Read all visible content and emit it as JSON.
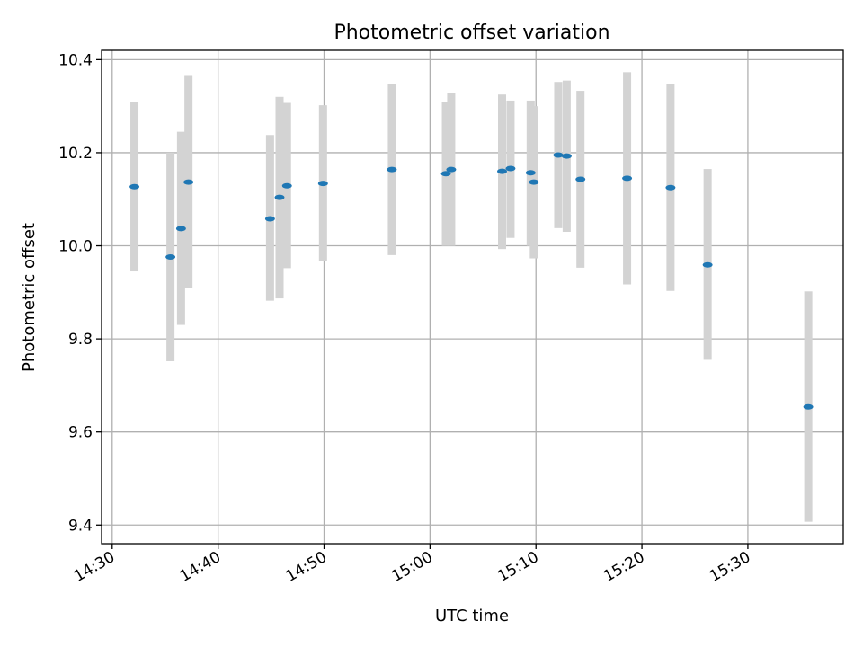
{
  "chart_data": {
    "type": "scatter",
    "title": "Photometric offset variation",
    "xlabel": "UTC time",
    "ylabel": "Photometric offset",
    "x_axis": {
      "kind": "time",
      "range": [
        "14:29",
        "15:39"
      ],
      "ticks": [
        "14:30",
        "14:40",
        "14:50",
        "15:00",
        "15:10",
        "15:20",
        "15:30"
      ]
    },
    "y_axis": {
      "range": [
        9.36,
        10.42
      ],
      "ticks": [
        9.4,
        9.6,
        9.8,
        10.0,
        10.2,
        10.4
      ],
      "tick_labels": [
        "9.4",
        "9.6",
        "9.8",
        "10.0",
        "10.2",
        "10.4"
      ]
    },
    "grid": true,
    "colors": {
      "point": "#1f77b4",
      "errorbar": "#d3d3d3"
    },
    "points": [
      {
        "x": "14:32:06",
        "y": 10.127,
        "low": 9.945,
        "high": 10.308
      },
      {
        "x": "14:35:30",
        "y": 9.976,
        "low": 9.752,
        "high": 10.2
      },
      {
        "x": "14:36:30",
        "y": 10.037,
        "low": 9.83,
        "high": 10.245
      },
      {
        "x": "14:37:12",
        "y": 10.137,
        "low": 9.91,
        "high": 10.365
      },
      {
        "x": "14:44:54",
        "y": 10.058,
        "low": 9.882,
        "high": 10.238
      },
      {
        "x": "14:45:48",
        "y": 10.104,
        "low": 9.887,
        "high": 10.32
      },
      {
        "x": "14:46:30",
        "y": 10.129,
        "low": 9.952,
        "high": 10.307
      },
      {
        "x": "14:49:54",
        "y": 10.134,
        "low": 9.967,
        "high": 10.302
      },
      {
        "x": "14:56:24",
        "y": 10.164,
        "low": 9.98,
        "high": 10.348
      },
      {
        "x": "15:01:30",
        "y": 10.155,
        "low": 10.0,
        "high": 10.308
      },
      {
        "x": "15:02:00",
        "y": 10.164,
        "low": 10.0,
        "high": 10.328
      },
      {
        "x": "15:06:48",
        "y": 10.16,
        "low": 9.993,
        "high": 10.325
      },
      {
        "x": "15:07:36",
        "y": 10.166,
        "low": 10.017,
        "high": 10.312
      },
      {
        "x": "15:09:30",
        "y": 10.157,
        "low": 10.0,
        "high": 10.312
      },
      {
        "x": "15:09:48",
        "y": 10.137,
        "low": 9.973,
        "high": 10.3
      },
      {
        "x": "15:12:06",
        "y": 10.195,
        "low": 10.038,
        "high": 10.352
      },
      {
        "x": "15:12:54",
        "y": 10.193,
        "low": 10.03,
        "high": 10.355
      },
      {
        "x": "15:14:12",
        "y": 10.143,
        "low": 9.953,
        "high": 10.333
      },
      {
        "x": "15:18:36",
        "y": 10.145,
        "low": 9.917,
        "high": 10.373
      },
      {
        "x": "15:22:42",
        "y": 10.125,
        "low": 9.903,
        "high": 10.348
      },
      {
        "x": "15:26:12",
        "y": 9.959,
        "low": 9.755,
        "high": 10.165
      },
      {
        "x": "15:35:42",
        "y": 9.654,
        "low": 9.407,
        "high": 9.902
      }
    ]
  }
}
